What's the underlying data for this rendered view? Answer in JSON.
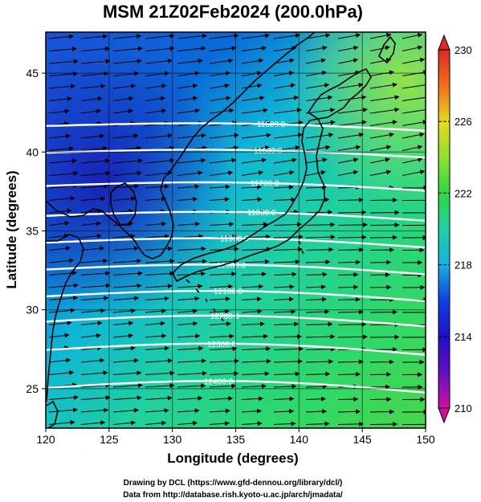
{
  "chart_data": {
    "type": "heatmap",
    "title": "MSM 21Z02Feb2024 (200.0hPa)",
    "xlabel": "Longitude (degrees)",
    "ylabel": "Latitude  (degrees)",
    "xlim": [
      120,
      150
    ],
    "ylim": [
      22.5,
      47.6
    ],
    "x_ticks": [
      "120",
      "125",
      "130",
      "135",
      "140",
      "145",
      "150"
    ],
    "y_ticks": [
      "25",
      "30",
      "35",
      "40",
      "45"
    ],
    "colorbar": {
      "range": [
        210,
        230
      ],
      "ticks": [
        "210",
        "214",
        "218",
        "222",
        "226",
        "230"
      ],
      "extend": "both"
    },
    "contours": [
      {
        "label": "11500.0",
        "lat": 41.5
      },
      {
        "label": "11600.0",
        "lat": 39.8
      },
      {
        "label": "11700.0",
        "lat": 37.7
      },
      {
        "label": "11800.0",
        "lat": 35.8
      },
      {
        "label": "11900.0",
        "lat": 34.1
      },
      {
        "label": "12000.0",
        "lat": 32.4
      },
      {
        "label": "12100.0",
        "lat": 30.7
      },
      {
        "label": "12200.0",
        "lat": 29.1
      },
      {
        "label": "12300.0",
        "lat": 27.3
      },
      {
        "label": "12400.0",
        "lat": 24.9
      }
    ]
  },
  "footer": {
    "line1": "Drawing by DCL (https://www.gfd-dennou.org/library/dcl/)",
    "line2": "Data from http://database.rish.kyoto-u.ac.jp/arch/jmadata/"
  }
}
